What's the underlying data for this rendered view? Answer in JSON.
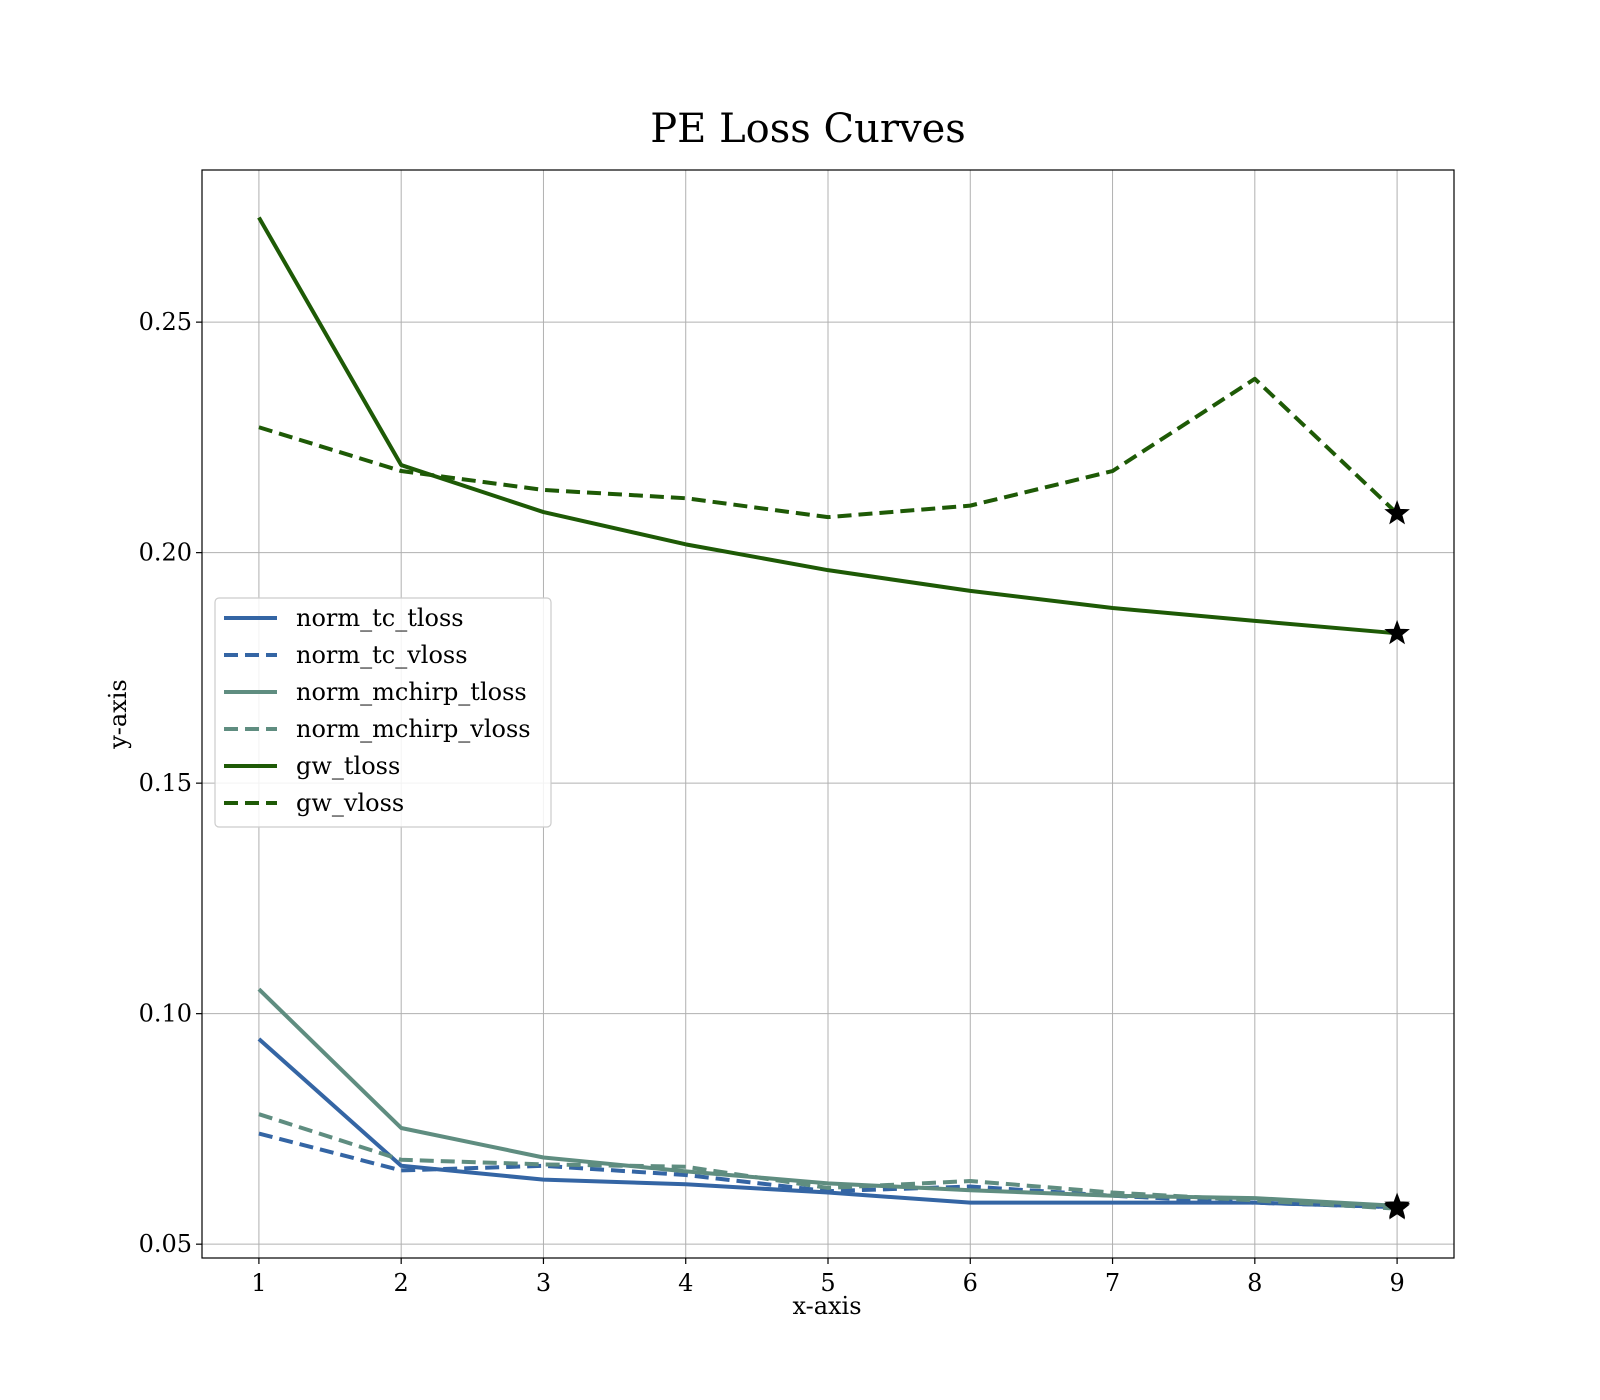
{
  "chart_data": {
    "type": "line",
    "title": "PE Loss Curves",
    "xlabel": "x-axis",
    "ylabel": "y-axis",
    "x": [
      1,
      2,
      3,
      4,
      5,
      6,
      7,
      8,
      9
    ],
    "xlim": [
      0.6,
      9.4
    ],
    "ylim": [
      0.047,
      0.283
    ],
    "xticks": [
      1,
      2,
      3,
      4,
      5,
      6,
      7,
      8,
      9
    ],
    "yticks": [
      0.05,
      0.1,
      0.15,
      0.2,
      0.25
    ],
    "ytick_labels": [
      "0.05",
      "0.10",
      "0.15",
      "0.20",
      "0.25"
    ],
    "grid": true,
    "legend_position": "center-left",
    "end_marker": "black star at final point of each series",
    "series": [
      {
        "name": "norm_tc_tloss",
        "color": "#3465a4",
        "dash": "solid",
        "values": [
          0.0945,
          0.067,
          0.064,
          0.063,
          0.0612,
          0.059,
          0.059,
          0.059,
          0.058
        ]
      },
      {
        "name": "norm_tc_vloss",
        "color": "#3465a4",
        "dash": "dashed",
        "values": [
          0.074,
          0.066,
          0.067,
          0.065,
          0.0615,
          0.0625,
          0.0605,
          0.059,
          0.058
        ]
      },
      {
        "name": "norm_mchirp_tloss",
        "color": "#5f8d80",
        "dash": "solid",
        "values": [
          0.1053,
          0.0752,
          0.0688,
          0.0658,
          0.0632,
          0.0617,
          0.0605,
          0.06,
          0.0583
        ]
      },
      {
        "name": "norm_mchirp_vloss",
        "color": "#5f8d80",
        "dash": "dashed",
        "values": [
          0.0782,
          0.0683,
          0.0673,
          0.0668,
          0.0622,
          0.0637,
          0.0612,
          0.0595,
          0.0577
        ]
      },
      {
        "name": "gw_tloss",
        "color": "#1e5a06",
        "dash": "solid",
        "values": [
          0.2727,
          0.219,
          0.2088,
          0.2018,
          0.1962,
          0.1917,
          0.188,
          0.1852,
          0.1825
        ]
      },
      {
        "name": "gw_vloss",
        "color": "#1e5a06",
        "dash": "dashed",
        "values": [
          0.2272,
          0.2177,
          0.2136,
          0.2118,
          0.2077,
          0.2102,
          0.2177,
          0.2377,
          0.2085
        ]
      }
    ]
  }
}
